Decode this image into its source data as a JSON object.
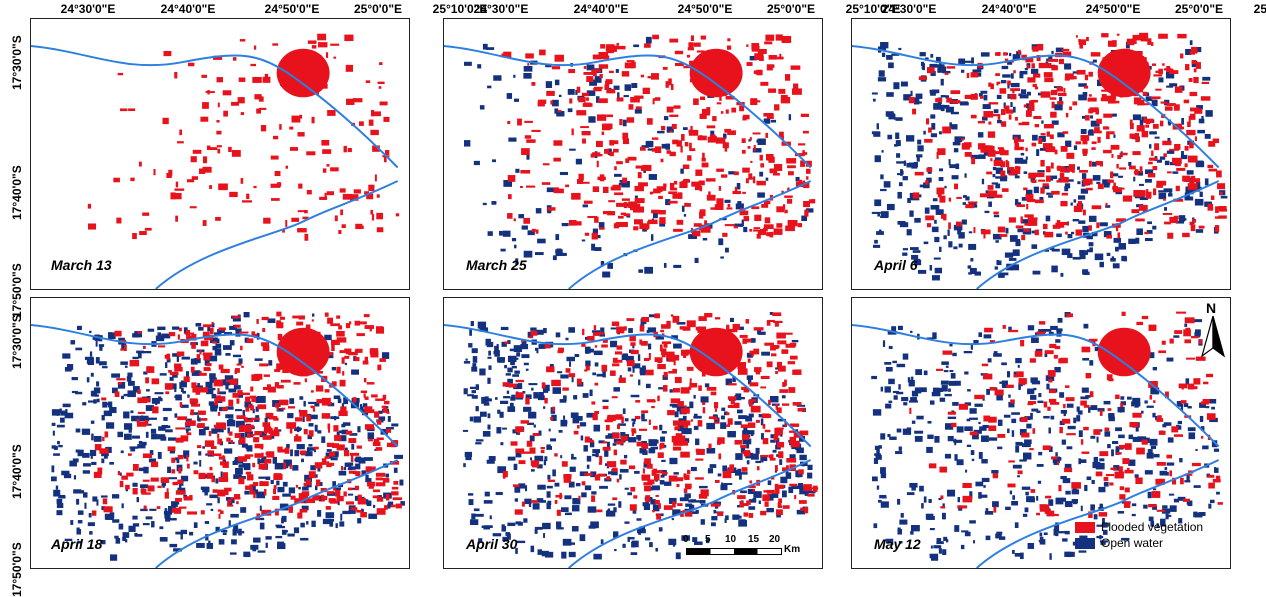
{
  "lon_labels": [
    "24°30'0\"E",
    "24°40'0\"E",
    "24°50'0\"E",
    "25°0'0\"E",
    "25°10'0\"E"
  ],
  "lat_labels": [
    "17°30'0\"S",
    "17°40'0\"S",
    "17°50'0\"S"
  ],
  "panels": [
    {
      "date": "March 13",
      "flood": 0.25,
      "water": 0.0
    },
    {
      "date": "March 25",
      "flood": 0.6,
      "water": 0.25
    },
    {
      "date": "April 6",
      "flood": 0.65,
      "water": 0.7
    },
    {
      "date": "April 18",
      "flood": 0.7,
      "water": 0.9
    },
    {
      "date": "April 30",
      "flood": 0.6,
      "water": 0.85
    },
    {
      "date": "May 12",
      "flood": 0.3,
      "water": 0.7
    }
  ],
  "legend": {
    "items": [
      {
        "label": "Flooded vegetation",
        "color": "#e8121c"
      },
      {
        "label": "Open water",
        "color": "#13317e"
      }
    ]
  },
  "scale_bar": {
    "ticks": [
      "0",
      "5",
      "10",
      "15",
      "20"
    ],
    "unit": "Km"
  },
  "north_arrow": {
    "label": "N"
  },
  "colors": {
    "river": "#2d7fe0",
    "flood": "#e8121c",
    "water": "#13317e"
  }
}
